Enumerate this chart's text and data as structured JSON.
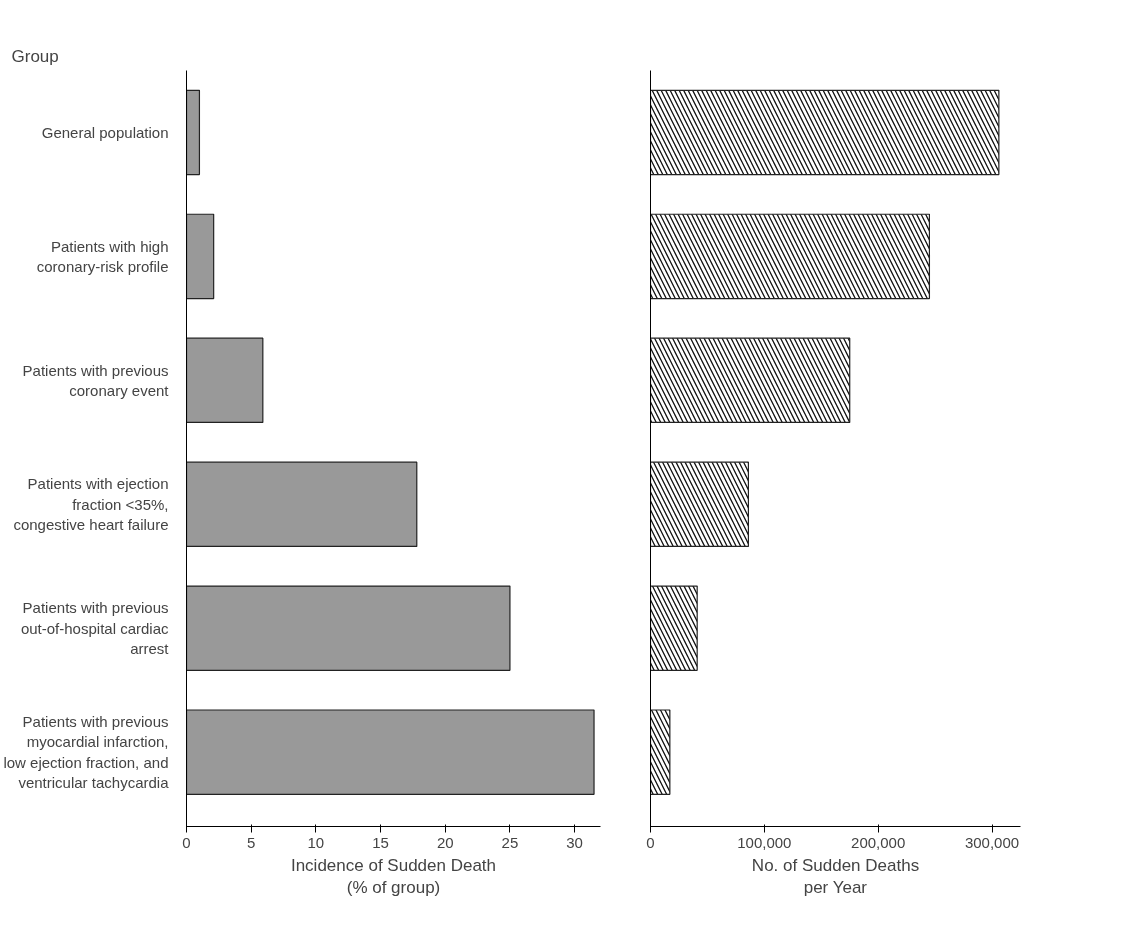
{
  "chart_data": [
    {
      "type": "bar",
      "orientation": "horizontal",
      "ylabel": "Group",
      "xlabel": "Incidence of Sudden Death\n(% of group)",
      "categories": [
        "General population",
        "Patients with high\ncoronary-risk profile",
        "Patients with previous\ncoronary event",
        "Patients with ejection\nfraction <35%,\ncongestive heart failure",
        "Patients with previous\nout-of-hospital cardiac\narrest",
        "Patients with previous\nmyocardial infarction,\nlow ejection fraction, and\nventricular tachycardia"
      ],
      "values": [
        1.0,
        2.1,
        5.9,
        17.8,
        25.0,
        31.5
      ],
      "color": "#999999",
      "xlim": [
        0,
        32
      ],
      "xticks": [
        0,
        5,
        10,
        15,
        20,
        25,
        30
      ],
      "grid": false
    },
    {
      "type": "bar",
      "orientation": "horizontal",
      "xlabel": "No. of Sudden Deaths\nper Year",
      "values": [
        306000,
        245000,
        175000,
        86000,
        41000,
        17000
      ],
      "color": "#ffffff",
      "xlim": [
        0,
        325000
      ],
      "xticks": [
        0,
        {
          "value": 100000,
          "label": "100,000"
        },
        {
          "value": 200000,
          "label": "200,000"
        },
        {
          "value": 300000,
          "label": "300,000"
        }
      ],
      "tick_labels": "x",
      "grid": false
    }
  ]
}
